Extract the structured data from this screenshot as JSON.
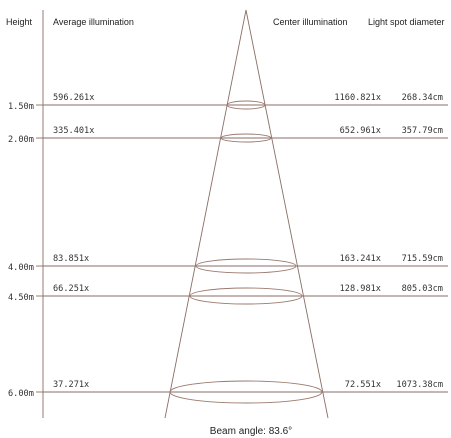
{
  "headers": {
    "height": "Height",
    "average": "Average illumination",
    "center": "Center illumination",
    "diameter": "Light spot diameter"
  },
  "rows": [
    {
      "height": "1.50m",
      "average": "596.261x",
      "center": "1160.821x",
      "diameter": "268.34cm"
    },
    {
      "height": "2.00m",
      "average": "335.401x",
      "center": "652.961x",
      "diameter": "357.79cm"
    },
    {
      "height": "4.00m",
      "average": "83.851x",
      "center": "163.241x",
      "diameter": "715.59cm"
    },
    {
      "height": "4.50m",
      "average": "66.251x",
      "center": "128.981x",
      "diameter": "805.03cm"
    },
    {
      "height": "6.00m",
      "average": "37.271x",
      "center": "72.551x",
      "diameter": "1073.38cm"
    }
  ],
  "caption": "Beam angle: 83.6°",
  "colors": {
    "lines": "#8a6e66",
    "text": "#222222"
  }
}
